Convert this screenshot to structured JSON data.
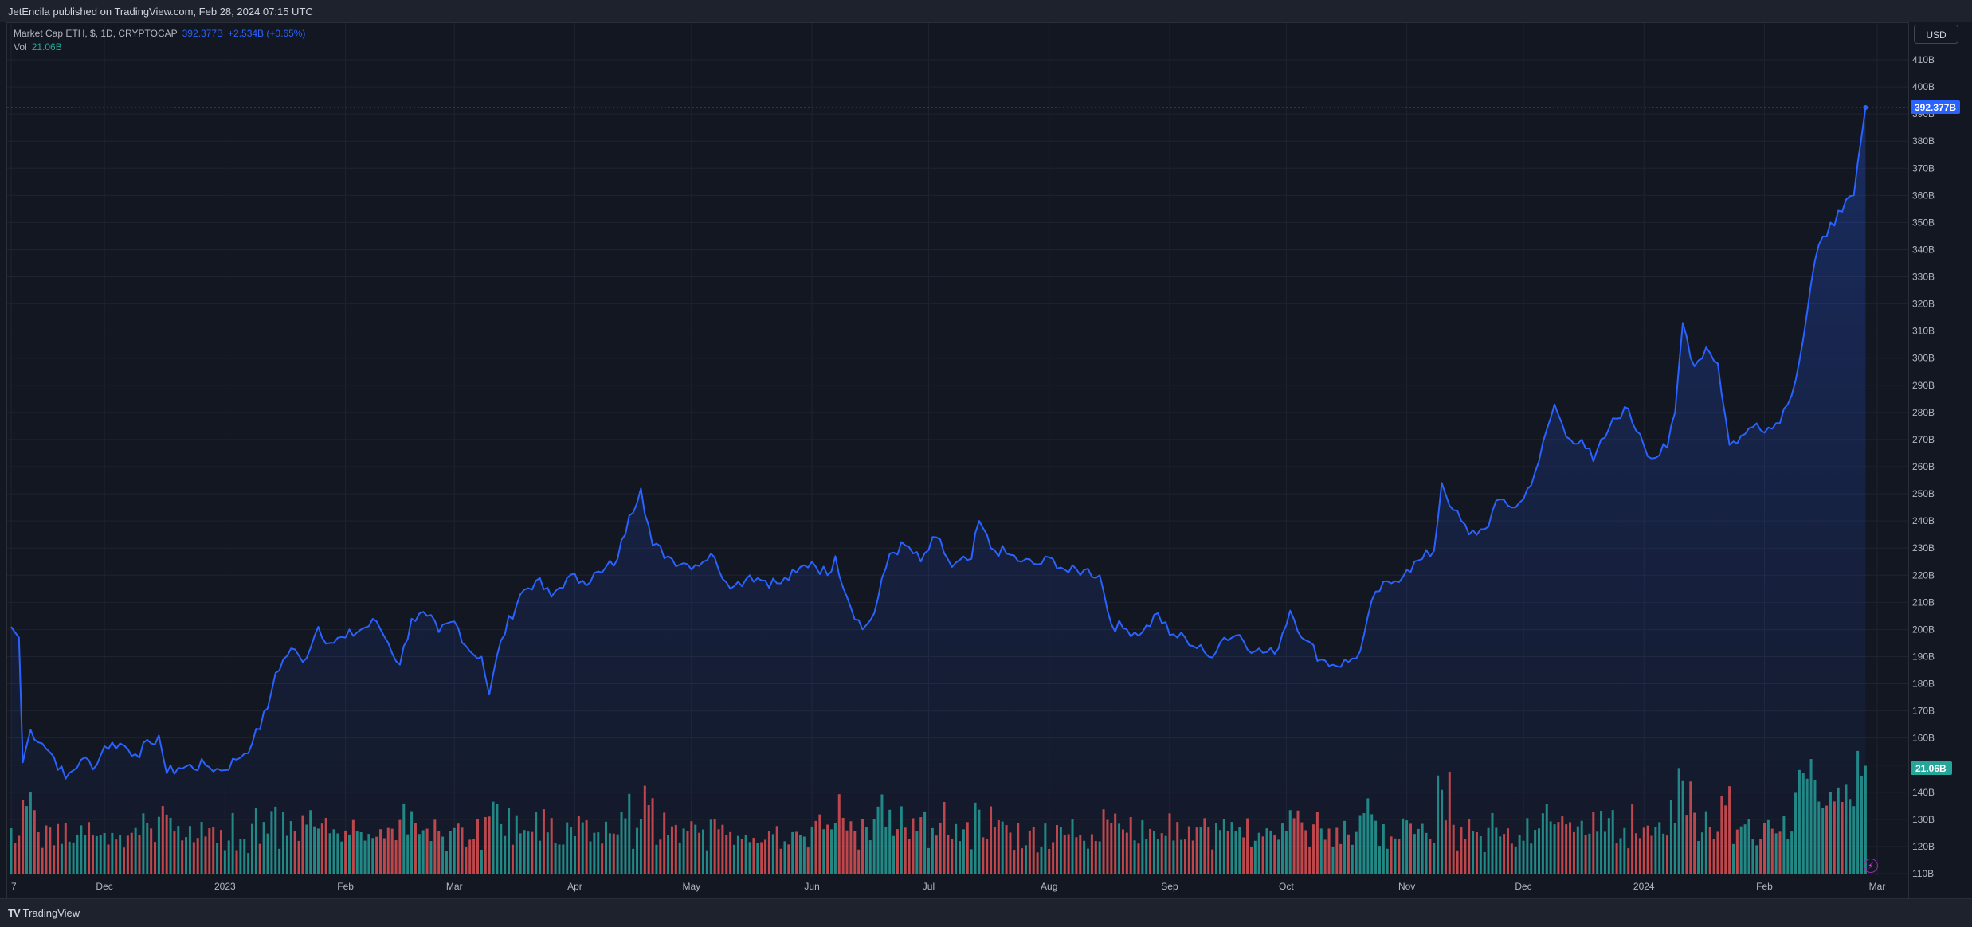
{
  "header": {
    "publish_text": "JetEncila published on TradingView.com, Feb 28, 2024 07:15 UTC"
  },
  "legend": {
    "symbol": "Market Cap ETH, $, 1D, CRYPTOCAP",
    "price": "392.377B",
    "change": "+2.534B (+0.65%)",
    "vol_label": "Vol",
    "vol_value": "21.06B"
  },
  "currency": "USD",
  "footer": {
    "brand": "TradingView",
    "logo_icon": "tradingview-logo-icon"
  },
  "colors": {
    "line": "#2962ff",
    "up": "#26a69a",
    "down": "#ef5350",
    "price_tag": "#2962ff",
    "vol_tag": "#26a69a"
  },
  "chart_data": {
    "type": "area",
    "title": "Market Cap ETH, $, 1D, CRYPTOCAP",
    "x_tick_labels": [
      "7",
      "Dec",
      "2023",
      "Feb",
      "Mar",
      "Apr",
      "May",
      "Jun",
      "Jul",
      "Aug",
      "Sep",
      "Oct",
      "Nov",
      "Dec",
      "2024",
      "Feb",
      "Mar"
    ],
    "y_tick_labels": [
      "410B",
      "400B",
      "390B",
      "380B",
      "370B",
      "360B",
      "350B",
      "340B",
      "330B",
      "320B",
      "310B",
      "300B",
      "290B",
      "280B",
      "270B",
      "260B",
      "250B",
      "240B",
      "230B",
      "220B",
      "210B",
      "200B",
      "190B",
      "180B",
      "170B",
      "160B",
      "150B",
      "140B",
      "130B",
      "120B",
      "110B"
    ],
    "ylim": [
      109,
      413
    ],
    "last_price_label": "392.377B",
    "last_volume_label": "21.06B",
    "price_keypoints": [
      [
        "2022-11-07",
        201
      ],
      [
        "2022-11-09",
        197
      ],
      [
        "2022-11-10",
        151
      ],
      [
        "2022-11-12",
        163
      ],
      [
        "2022-11-15",
        158
      ],
      [
        "2022-11-18",
        153
      ],
      [
        "2022-11-21",
        145
      ],
      [
        "2022-11-25",
        152
      ],
      [
        "2022-11-29",
        150
      ],
      [
        "2022-12-01",
        157
      ],
      [
        "2022-12-05",
        158
      ],
      [
        "2022-12-09",
        154
      ],
      [
        "2022-12-13",
        158
      ],
      [
        "2022-12-15",
        161
      ],
      [
        "2022-12-17",
        147
      ],
      [
        "2022-12-20",
        149
      ],
      [
        "2022-12-27",
        150
      ],
      [
        "2022-12-31",
        148
      ],
      [
        "2023-01-04",
        152
      ],
      [
        "2023-01-08",
        158
      ],
      [
        "2023-01-12",
        171
      ],
      [
        "2023-01-14",
        184
      ],
      [
        "2023-01-18",
        193
      ],
      [
        "2023-01-21",
        188
      ],
      [
        "2023-01-25",
        201
      ],
      [
        "2023-01-28",
        195
      ],
      [
        "2023-02-01",
        197
      ],
      [
        "2023-02-05",
        200
      ],
      [
        "2023-02-09",
        203
      ],
      [
        "2023-02-12",
        195
      ],
      [
        "2023-02-15",
        187
      ],
      [
        "2023-02-18",
        204
      ],
      [
        "2023-02-22",
        205
      ],
      [
        "2023-02-25",
        199
      ],
      [
        "2023-03-01",
        203
      ],
      [
        "2023-03-05",
        192
      ],
      [
        "2023-03-08",
        190
      ],
      [
        "2023-03-10",
        176
      ],
      [
        "2023-03-13",
        196
      ],
      [
        "2023-03-18",
        213
      ],
      [
        "2023-03-22",
        218
      ],
      [
        "2023-03-26",
        212
      ],
      [
        "2023-03-30",
        219
      ],
      [
        "2023-04-03",
        218
      ],
      [
        "2023-04-08",
        221
      ],
      [
        "2023-04-12",
        226
      ],
      [
        "2023-04-15",
        242
      ],
      [
        "2023-04-18",
        252
      ],
      [
        "2023-04-21",
        231
      ],
      [
        "2023-04-26",
        226
      ],
      [
        "2023-04-30",
        224
      ],
      [
        "2023-05-04",
        225
      ],
      [
        "2023-05-06",
        228
      ],
      [
        "2023-05-08",
        222
      ],
      [
        "2023-05-12",
        216
      ],
      [
        "2023-05-16",
        220
      ],
      [
        "2023-05-20",
        218
      ],
      [
        "2023-05-24",
        217
      ],
      [
        "2023-05-28",
        221
      ],
      [
        "2023-06-01",
        225
      ],
      [
        "2023-06-05",
        220
      ],
      [
        "2023-06-07",
        227
      ],
      [
        "2023-06-10",
        212
      ],
      [
        "2023-06-14",
        200
      ],
      [
        "2023-06-17",
        206
      ],
      [
        "2023-06-21",
        228
      ],
      [
        "2023-06-25",
        231
      ],
      [
        "2023-06-29",
        225
      ],
      [
        "2023-07-03",
        234
      ],
      [
        "2023-07-07",
        223
      ],
      [
        "2023-07-12",
        226
      ],
      [
        "2023-07-14",
        240
      ],
      [
        "2023-07-17",
        230
      ],
      [
        "2023-07-21",
        228
      ],
      [
        "2023-07-25",
        225
      ],
      [
        "2023-07-29",
        224
      ],
      [
        "2023-08-02",
        226
      ],
      [
        "2023-08-06",
        221
      ],
      [
        "2023-08-10",
        222
      ],
      [
        "2023-08-14",
        220
      ],
      [
        "2023-08-17",
        202
      ],
      [
        "2023-08-21",
        200
      ],
      [
        "2023-08-25",
        199
      ],
      [
        "2023-08-29",
        206
      ],
      [
        "2023-09-01",
        198
      ],
      [
        "2023-09-05",
        197
      ],
      [
        "2023-09-11",
        190
      ],
      [
        "2023-09-15",
        197
      ],
      [
        "2023-09-19",
        198
      ],
      [
        "2023-09-23",
        192
      ],
      [
        "2023-09-28",
        191
      ],
      [
        "2023-10-02",
        207
      ],
      [
        "2023-10-06",
        196
      ],
      [
        "2023-10-10",
        189
      ],
      [
        "2023-10-13",
        187
      ],
      [
        "2023-10-17",
        188
      ],
      [
        "2023-10-20",
        192
      ],
      [
        "2023-10-24",
        214
      ],
      [
        "2023-10-28",
        217
      ],
      [
        "2023-11-01",
        222
      ],
      [
        "2023-11-05",
        226
      ],
      [
        "2023-11-08",
        229
      ],
      [
        "2023-11-10",
        254
      ],
      [
        "2023-11-13",
        244
      ],
      [
        "2023-11-17",
        235
      ],
      [
        "2023-11-21",
        237
      ],
      [
        "2023-11-25",
        248
      ],
      [
        "2023-11-29",
        245
      ],
      [
        "2023-12-01",
        248
      ],
      [
        "2023-12-05",
        262
      ],
      [
        "2023-12-09",
        283
      ],
      [
        "2023-12-12",
        271
      ],
      [
        "2023-12-16",
        270
      ],
      [
        "2023-12-19",
        262
      ],
      [
        "2023-12-23",
        274
      ],
      [
        "2023-12-27",
        282
      ],
      [
        "2023-12-31",
        272
      ],
      [
        "2024-01-03",
        263
      ],
      [
        "2024-01-07",
        267
      ],
      [
        "2024-01-09",
        280
      ],
      [
        "2024-01-11",
        313
      ],
      [
        "2024-01-14",
        297
      ],
      [
        "2024-01-17",
        304
      ],
      [
        "2024-01-20",
        298
      ],
      [
        "2024-01-23",
        268
      ],
      [
        "2024-01-27",
        272
      ],
      [
        "2024-01-30",
        276
      ],
      [
        "2024-02-03",
        274
      ],
      [
        "2024-02-07",
        283
      ],
      [
        "2024-02-10",
        299
      ],
      [
        "2024-02-14",
        336
      ],
      [
        "2024-02-18",
        350
      ],
      [
        "2024-02-21",
        354
      ],
      [
        "2024-02-24",
        360
      ],
      [
        "2024-02-27",
        392.377
      ]
    ],
    "volume_series": {
      "name": "Vol",
      "last_value": "21.06B"
    }
  }
}
